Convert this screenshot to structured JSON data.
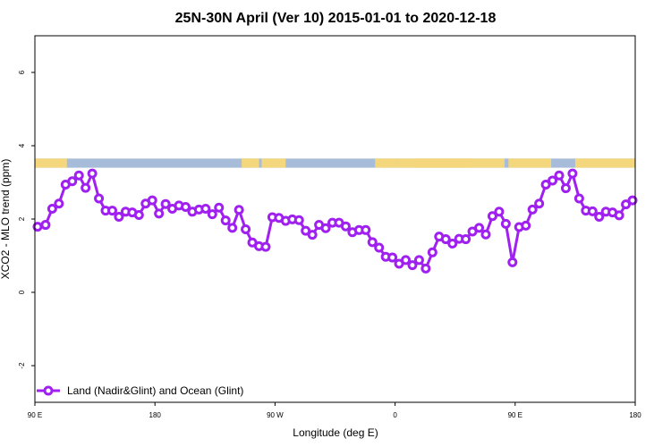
{
  "chart_data": {
    "type": "line",
    "title": "25N-30N April (Ver 10)   2015-01-01 to 2020-12-18",
    "xlabel": "Longitude (deg E)",
    "ylabel": "XCO2 - MLO trend (ppm)",
    "xlim": [
      90,
      540
    ],
    "ylim": [
      -3,
      7
    ],
    "x_ticks": [
      {
        "value": 90,
        "label": "90 E"
      },
      {
        "value": 180,
        "label": "180"
      },
      {
        "value": 270,
        "label": "90 W"
      },
      {
        "value": 360,
        "label": "0"
      },
      {
        "value": 450,
        "label": "90 E"
      },
      {
        "value": 540,
        "label": "180"
      }
    ],
    "y_ticks": [
      {
        "value": -2,
        "label": "-2"
      },
      {
        "value": 0,
        "label": "0"
      },
      {
        "value": 2,
        "label": "2"
      },
      {
        "value": 4,
        "label": "4"
      },
      {
        "value": 6,
        "label": "6"
      }
    ],
    "series": [
      {
        "name": "Land (Nadir&Glint) and Ocean (Glint)",
        "color": "#a020f0",
        "x": [
          92,
          98,
          103,
          108,
          113,
          118,
          123,
          128,
          133,
          138,
          143,
          148,
          153,
          158,
          163,
          168,
          173,
          178,
          183,
          188,
          193,
          198,
          203,
          208,
          213,
          218,
          223,
          228,
          233,
          238,
          243,
          248,
          253,
          258,
          263,
          268,
          273,
          278,
          283,
          288,
          293,
          298,
          303,
          308,
          313,
          318,
          323,
          328,
          333,
          338,
          343,
          348,
          353,
          358,
          363,
          368,
          373,
          378,
          383,
          388,
          393,
          398,
          403,
          408,
          413,
          418,
          423,
          428,
          433,
          438,
          443,
          448,
          453,
          458,
          463,
          468,
          473,
          478,
          483,
          488,
          493,
          498,
          503,
          508,
          513,
          518,
          523,
          528,
          533,
          538
        ],
        "y": [
          1.79,
          1.84,
          2.28,
          2.42,
          2.94,
          3.03,
          3.19,
          2.85,
          3.24,
          2.56,
          2.23,
          2.23,
          2.06,
          2.2,
          2.18,
          2.11,
          2.42,
          2.51,
          2.15,
          2.41,
          2.28,
          2.37,
          2.33,
          2.2,
          2.26,
          2.28,
          2.13,
          2.31,
          1.96,
          1.76,
          2.25,
          1.72,
          1.36,
          1.26,
          1.24,
          2.05,
          2.03,
          1.95,
          1.99,
          1.97,
          1.68,
          1.57,
          1.84,
          1.75,
          1.9,
          1.9,
          1.8,
          1.64,
          1.7,
          1.7,
          1.37,
          1.22,
          0.97,
          0.95,
          0.78,
          0.88,
          0.74,
          0.88,
          0.65,
          1.09,
          1.52,
          1.45,
          1.33,
          1.46,
          1.45,
          1.66,
          1.76,
          1.58,
          2.08,
          2.2,
          1.87,
          0.82,
          1.78,
          1.82,
          2.26,
          2.42,
          2.94,
          3.05,
          3.19,
          2.84,
          3.24,
          2.56,
          2.23,
          2.21,
          2.06,
          2.2,
          2.18,
          2.1,
          2.4,
          2.51
        ]
      }
    ],
    "legend": {
      "position": "bottom-left",
      "entries": [
        "Land (Nadir&Glint) and Ocean (Glint)"
      ]
    },
    "land_ocean_strip": {
      "y_range": [
        3.4,
        3.65
      ],
      "ocean_color": "#a7bcd9",
      "land_color": "#f4d77c",
      "land_ranges": [
        [
          90,
          114
        ],
        [
          245,
          251
        ],
        [
          247,
          258
        ],
        [
          260,
          278
        ],
        [
          345,
          362
        ],
        [
          362,
          375
        ],
        [
          376,
          430
        ],
        [
          375,
          416
        ],
        [
          430,
          442
        ],
        [
          445,
          477
        ],
        [
          495,
          540
        ]
      ]
    }
  }
}
